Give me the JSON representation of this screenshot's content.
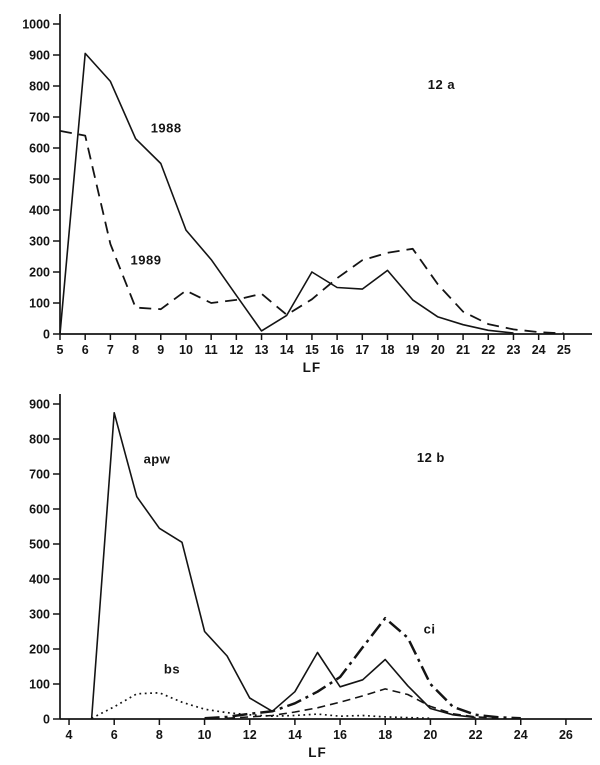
{
  "figure": {
    "description_labels": {
      "panel_a": "12 a",
      "panel_b": "12 b",
      "x_axis": "LF"
    }
  },
  "chart_data": [
    {
      "type": "line",
      "panel_label": "12 a",
      "xlabel": "LF",
      "ylabel": "",
      "xlim": [
        5,
        25.8
      ],
      "ylim": [
        0,
        1000
      ],
      "xticks": [
        5,
        6,
        7,
        8,
        9,
        10,
        11,
        12,
        13,
        14,
        15,
        16,
        17,
        18,
        19,
        20,
        21,
        22,
        23,
        24,
        25
      ],
      "yticks": [
        0,
        100,
        200,
        300,
        400,
        500,
        600,
        700,
        800,
        900,
        1000
      ],
      "grid": false,
      "legend": "inline-annotations",
      "series": [
        {
          "name": "1988",
          "style": "solid",
          "points": [
            [
              5,
              0
            ],
            [
              6,
              905
            ],
            [
              7,
              815
            ],
            [
              8,
              630
            ],
            [
              9,
              550
            ],
            [
              10,
              335
            ],
            [
              11,
              240
            ],
            [
              12,
              125
            ],
            [
              13,
              10
            ],
            [
              14,
              60
            ],
            [
              15,
              200
            ],
            [
              16,
              150
            ],
            [
              17,
              145
            ],
            [
              18,
              205
            ],
            [
              19,
              110
            ],
            [
              20,
              55
            ],
            [
              21,
              30
            ],
            [
              22,
              12
            ],
            [
              23,
              3
            ]
          ]
        },
        {
          "name": "1989",
          "style": "dashed",
          "points": [
            [
              5,
              655
            ],
            [
              6,
              640
            ],
            [
              7,
              290
            ],
            [
              8,
              85
            ],
            [
              9,
              80
            ],
            [
              10,
              140
            ],
            [
              11,
              100
            ],
            [
              12,
              110
            ],
            [
              13,
              130
            ],
            [
              14,
              62
            ],
            [
              15,
              112
            ],
            [
              16,
              180
            ],
            [
              17,
              238
            ],
            [
              18,
              262
            ],
            [
              19,
              275
            ],
            [
              20,
              160
            ],
            [
              21,
              72
            ],
            [
              22,
              32
            ],
            [
              23,
              15
            ],
            [
              24,
              6
            ],
            [
              25,
              2
            ]
          ]
        }
      ],
      "annotations": [
        {
          "text": "1988",
          "x": 8.6,
          "y": 650
        },
        {
          "text": "1989",
          "x": 7.8,
          "y": 225
        },
        {
          "text": "12 a",
          "x": 19.6,
          "y": 790
        }
      ]
    },
    {
      "type": "line",
      "panel_label": "12 b",
      "xlabel": "LF",
      "ylabel": "",
      "xlim": [
        3.6,
        26.8
      ],
      "ylim": [
        0,
        900
      ],
      "xticks": [
        4,
        6,
        8,
        10,
        12,
        14,
        16,
        18,
        20,
        22,
        24,
        26
      ],
      "yticks": [
        0,
        100,
        200,
        300,
        400,
        500,
        600,
        700,
        800,
        900
      ],
      "grid": false,
      "legend": "inline-annotations",
      "series": [
        {
          "name": "apw",
          "style": "solid",
          "points": [
            [
              5,
              0
            ],
            [
              6,
              875
            ],
            [
              7,
              635
            ],
            [
              8,
              545
            ],
            [
              9,
              505
            ],
            [
              10,
              250
            ],
            [
              11,
              180
            ],
            [
              12,
              60
            ],
            [
              13,
              22
            ],
            [
              14,
              78
            ],
            [
              15,
              190
            ],
            [
              16,
              92
            ],
            [
              17,
              112
            ],
            [
              18,
              170
            ],
            [
              19,
              95
            ],
            [
              20,
              30
            ],
            [
              21,
              12
            ],
            [
              22,
              4
            ]
          ]
        },
        {
          "name": "bs",
          "style": "dotted",
          "points": [
            [
              5,
              2
            ],
            [
              6,
              35
            ],
            [
              7,
              72
            ],
            [
              8,
              75
            ],
            [
              9,
              48
            ],
            [
              10,
              28
            ],
            [
              11,
              18
            ],
            [
              12,
              12
            ],
            [
              13,
              8
            ],
            [
              14,
              10
            ],
            [
              15,
              14
            ],
            [
              16,
              8
            ],
            [
              17,
              10
            ],
            [
              18,
              6
            ],
            [
              19,
              4
            ],
            [
              20,
              2
            ]
          ]
        },
        {
          "name": "ci",
          "style": "dashdot",
          "points": [
            [
              10,
              2
            ],
            [
              11,
              6
            ],
            [
              12,
              15
            ],
            [
              13,
              22
            ],
            [
              14,
              45
            ],
            [
              15,
              78
            ],
            [
              16,
              120
            ],
            [
              17,
              205
            ],
            [
              18,
              288
            ],
            [
              19,
              232
            ],
            [
              20,
              100
            ],
            [
              21,
              35
            ],
            [
              22,
              12
            ],
            [
              23,
              5
            ],
            [
              24,
              2
            ]
          ]
        },
        {
          "name": "unlabeled-dashed",
          "style": "dashed-short",
          "points": [
            [
              11,
              2
            ],
            [
              12,
              6
            ],
            [
              13,
              10
            ],
            [
              14,
              20
            ],
            [
              15,
              32
            ],
            [
              16,
              48
            ],
            [
              17,
              66
            ],
            [
              18,
              86
            ],
            [
              19,
              70
            ],
            [
              20,
              36
            ],
            [
              21,
              15
            ],
            [
              22,
              6
            ],
            [
              23,
              2
            ]
          ]
        }
      ],
      "annotations": [
        {
          "text": "apw",
          "x": 7.3,
          "y": 730
        },
        {
          "text": "bs",
          "x": 8.2,
          "y": 130
        },
        {
          "text": "ci",
          "x": 19.7,
          "y": 245
        },
        {
          "text": "12 b",
          "x": 19.4,
          "y": 735
        }
      ]
    }
  ]
}
